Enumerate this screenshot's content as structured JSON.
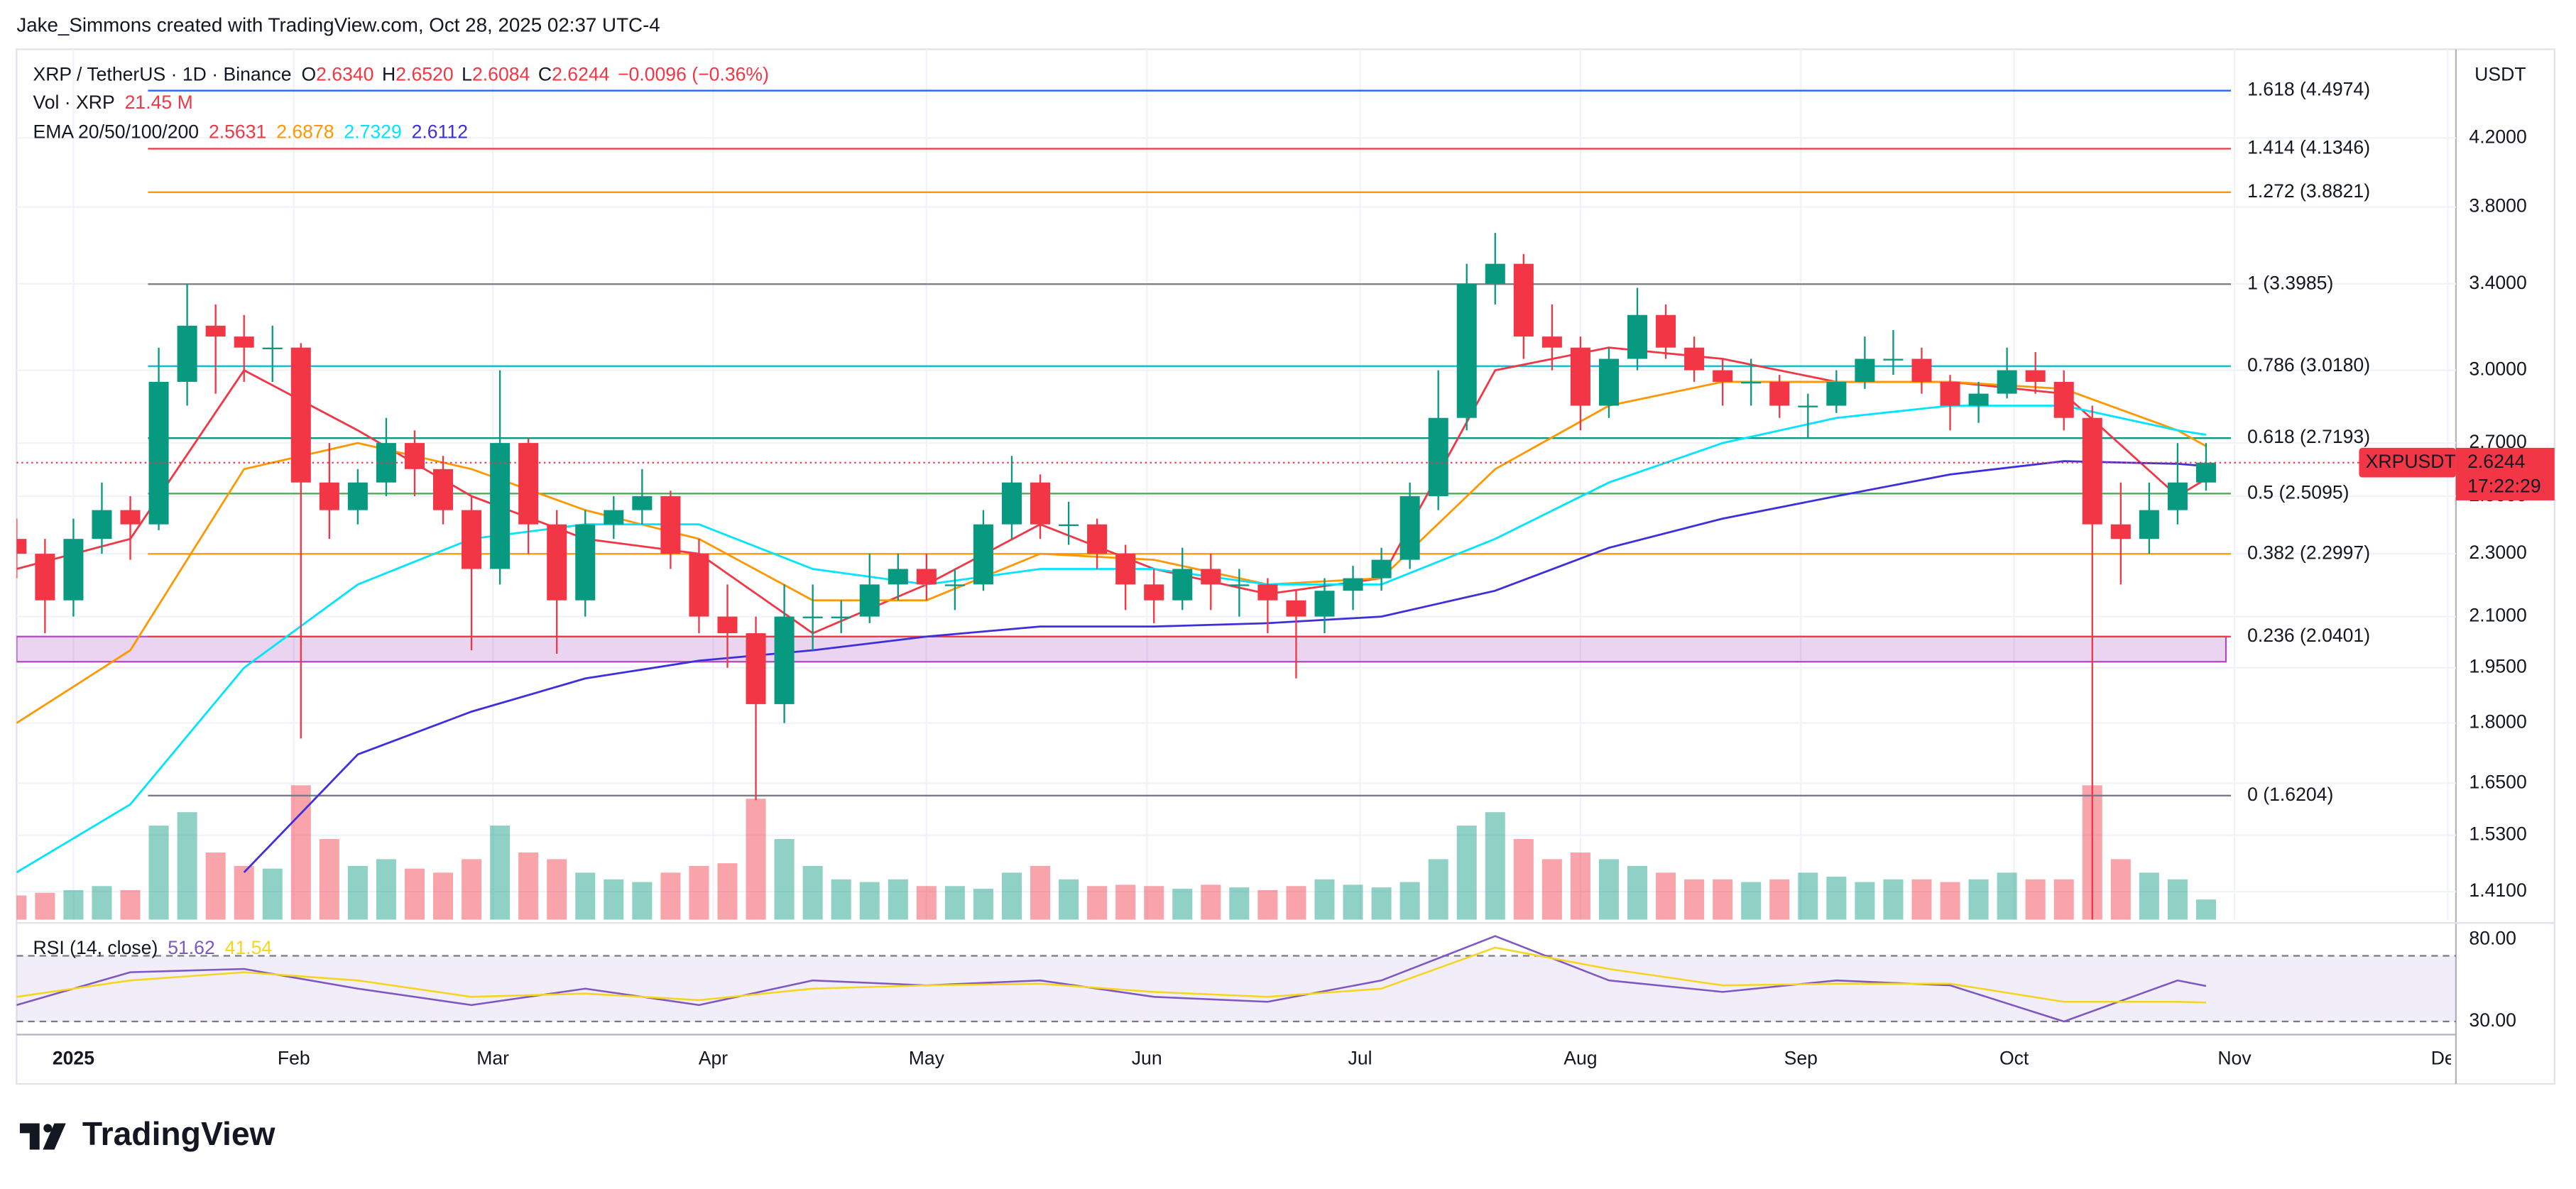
{
  "header": {
    "attribution": "Jake_Simmons created with TradingView.com, Oct 28, 2025 02:37 UTC-4",
    "logo": "TradingView"
  },
  "chart_data": {
    "type": "candlestick",
    "symbol": "XRP / TetherUS · 1D · Binance",
    "ohlc_legend": [
      {
        "label": "O",
        "value": "2.6340"
      },
      {
        "label": "H",
        "value": "2.6520"
      },
      {
        "label": "L",
        "value": "2.6084"
      },
      {
        "label": "C",
        "value": "2.6244"
      }
    ],
    "change": "−0.0096 (−0.36%)",
    "volume_label": "Vol · XRP",
    "volume_last": "21.45 M",
    "ema_label": "EMA 20/50/100/200",
    "currency": "USDT",
    "log_scale": true,
    "grid": true,
    "up_color": "#089981",
    "down_color": "#f23645",
    "x": [
      -8,
      -4,
      0,
      4,
      8,
      12,
      16,
      20,
      24,
      28,
      32,
      36,
      40,
      44,
      48,
      52,
      56,
      60,
      64,
      68,
      72,
      76,
      80,
      84,
      88,
      92,
      96,
      100,
      104,
      108,
      112,
      116,
      120,
      124,
      128,
      132,
      136,
      140,
      144,
      148,
      152,
      156,
      160,
      164,
      168,
      172,
      176,
      180,
      184,
      188,
      192,
      196,
      200,
      204,
      208,
      212,
      216,
      220,
      224,
      228,
      232,
      236,
      240,
      244,
      248,
      252,
      256,
      260,
      264,
      268,
      272,
      276,
      280,
      284,
      288,
      292,
      296,
      300
    ],
    "ohlc": [
      [
        2.35,
        2.42,
        2.22,
        2.3
      ],
      [
        2.3,
        2.35,
        2.05,
        2.15
      ],
      [
        2.15,
        2.42,
        2.1,
        2.35
      ],
      [
        2.35,
        2.55,
        2.3,
        2.45
      ],
      [
        2.45,
        2.5,
        2.28,
        2.4
      ],
      [
        2.4,
        3.1,
        2.38,
        2.95
      ],
      [
        2.95,
        3.4,
        2.85,
        3.2
      ],
      [
        3.2,
        3.3,
        2.9,
        3.15
      ],
      [
        3.15,
        3.25,
        2.95,
        3.1
      ],
      [
        3.1,
        3.2,
        2.95,
        3.1
      ],
      [
        3.1,
        3.12,
        1.76,
        2.55
      ],
      [
        2.55,
        2.7,
        2.35,
        2.45
      ],
      [
        2.45,
        2.6,
        2.4,
        2.55
      ],
      [
        2.55,
        2.8,
        2.5,
        2.7
      ],
      [
        2.7,
        2.75,
        2.5,
        2.6
      ],
      [
        2.6,
        2.65,
        2.4,
        2.45
      ],
      [
        2.45,
        2.5,
        2.0,
        2.25
      ],
      [
        2.25,
        3.0,
        2.2,
        2.7
      ],
      [
        2.7,
        2.72,
        2.3,
        2.4
      ],
      [
        2.4,
        2.45,
        1.99,
        2.15
      ],
      [
        2.15,
        2.45,
        2.1,
        2.4
      ],
      [
        2.4,
        2.5,
        2.35,
        2.45
      ],
      [
        2.45,
        2.6,
        2.4,
        2.5
      ],
      [
        2.5,
        2.52,
        2.25,
        2.3
      ],
      [
        2.3,
        2.35,
        2.05,
        2.1
      ],
      [
        2.1,
        2.2,
        1.95,
        2.05
      ],
      [
        2.05,
        2.1,
        1.61,
        1.85
      ],
      [
        1.85,
        2.2,
        1.8,
        2.1
      ],
      [
        2.1,
        2.2,
        2.0,
        2.1
      ],
      [
        2.1,
        2.15,
        2.05,
        2.1
      ],
      [
        2.1,
        2.3,
        2.08,
        2.2
      ],
      [
        2.2,
        2.3,
        2.15,
        2.25
      ],
      [
        2.25,
        2.3,
        2.15,
        2.2
      ],
      [
        2.2,
        2.25,
        2.12,
        2.2
      ],
      [
        2.2,
        2.45,
        2.18,
        2.4
      ],
      [
        2.4,
        2.65,
        2.35,
        2.55
      ],
      [
        2.55,
        2.58,
        2.35,
        2.4
      ],
      [
        2.4,
        2.48,
        2.33,
        2.4
      ],
      [
        2.4,
        2.42,
        2.25,
        2.3
      ],
      [
        2.3,
        2.33,
        2.12,
        2.2
      ],
      [
        2.2,
        2.25,
        2.08,
        2.15
      ],
      [
        2.15,
        2.32,
        2.12,
        2.25
      ],
      [
        2.25,
        2.3,
        2.12,
        2.2
      ],
      [
        2.2,
        2.25,
        2.1,
        2.2
      ],
      [
        2.2,
        2.22,
        2.05,
        2.15
      ],
      [
        2.15,
        2.18,
        1.92,
        2.1
      ],
      [
        2.1,
        2.22,
        2.05,
        2.18
      ],
      [
        2.18,
        2.26,
        2.12,
        2.22
      ],
      [
        2.22,
        2.32,
        2.18,
        2.28
      ],
      [
        2.28,
        2.55,
        2.25,
        2.5
      ],
      [
        2.5,
        3.0,
        2.45,
        2.8
      ],
      [
        2.8,
        3.5,
        2.75,
        3.4
      ],
      [
        3.4,
        3.66,
        3.3,
        3.5
      ],
      [
        3.5,
        3.55,
        3.05,
        3.15
      ],
      [
        3.15,
        3.3,
        3.0,
        3.1
      ],
      [
        3.1,
        3.15,
        2.75,
        2.85
      ],
      [
        2.85,
        3.1,
        2.8,
        3.05
      ],
      [
        3.05,
        3.38,
        3.0,
        3.25
      ],
      [
        3.25,
        3.3,
        3.05,
        3.1
      ],
      [
        3.1,
        3.15,
        2.95,
        3.0
      ],
      [
        3.0,
        3.05,
        2.85,
        2.95
      ],
      [
        2.95,
        3.05,
        2.85,
        2.95
      ],
      [
        2.95,
        2.98,
        2.8,
        2.85
      ],
      [
        2.85,
        2.9,
        2.72,
        2.85
      ],
      [
        2.85,
        3.0,
        2.82,
        2.95
      ],
      [
        2.95,
        3.15,
        2.92,
        3.05
      ],
      [
        3.05,
        3.18,
        2.98,
        3.05
      ],
      [
        3.05,
        3.1,
        2.9,
        2.95
      ],
      [
        2.95,
        2.98,
        2.75,
        2.85
      ],
      [
        2.85,
        2.95,
        2.78,
        2.9
      ],
      [
        2.9,
        3.1,
        2.88,
        3.0
      ],
      [
        3.0,
        3.08,
        2.9,
        2.95
      ],
      [
        2.95,
        3.0,
        2.75,
        2.8
      ],
      [
        2.8,
        2.85,
        1.35,
        2.4
      ],
      [
        2.4,
        2.55,
        2.2,
        2.35
      ],
      [
        2.35,
        2.55,
        2.3,
        2.45
      ],
      [
        2.45,
        2.7,
        2.4,
        2.55
      ],
      [
        2.55,
        2.7,
        2.52,
        2.6244
      ]
    ],
    "volume": [
      180,
      200,
      220,
      250,
      220,
      700,
      800,
      500,
      400,
      380,
      1000,
      600,
      400,
      450,
      380,
      350,
      450,
      700,
      500,
      450,
      350,
      300,
      280,
      350,
      400,
      420,
      900,
      600,
      400,
      300,
      280,
      300,
      250,
      250,
      230,
      350,
      400,
      300,
      250,
      260,
      250,
      230,
      260,
      240,
      220,
      250,
      300,
      260,
      240,
      280,
      450,
      700,
      800,
      600,
      450,
      500,
      450,
      400,
      350,
      300,
      300,
      280,
      300,
      350,
      320,
      280,
      300,
      300,
      280,
      300,
      350,
      300,
      300,
      1000,
      450,
      350,
      300,
      150
    ],
    "volume_ylim": [
      0,
      1100
    ],
    "xlim": [
      -8,
      334
    ],
    "xticks": [
      {
        "value": 0,
        "label": "2025"
      },
      {
        "value": 31,
        "label": "Feb"
      },
      {
        "value": 59,
        "label": "Mar"
      },
      {
        "value": 90,
        "label": "Apr"
      },
      {
        "value": 120,
        "label": "May"
      },
      {
        "value": 151,
        "label": "Jun"
      },
      {
        "value": 181,
        "label": "Jul"
      },
      {
        "value": 212,
        "label": "Aug"
      },
      {
        "value": 243,
        "label": "Sep"
      },
      {
        "value": 273,
        "label": "Oct"
      },
      {
        "value": 304,
        "label": "Nov"
      },
      {
        "value": 334,
        "label": "Dec"
      }
    ],
    "ylim": [
      1.354,
      4.775
    ],
    "yticks": [
      {
        "value": 4.2,
        "label": "4.2000"
      },
      {
        "value": 3.8,
        "label": "3.8000"
      },
      {
        "value": 3.4,
        "label": "3.4000"
      },
      {
        "value": 3.0,
        "label": "3.0000"
      },
      {
        "value": 2.7,
        "label": "2.7000"
      },
      {
        "value": 2.5,
        "label": "2.5000"
      },
      {
        "value": 2.3,
        "label": "2.3000"
      },
      {
        "value": 2.1,
        "label": "2.1000"
      },
      {
        "value": 1.95,
        "label": "1.9500"
      },
      {
        "value": 1.8,
        "label": "1.8000"
      },
      {
        "value": 1.65,
        "label": "1.6500"
      },
      {
        "value": 1.53,
        "label": "1.5300"
      },
      {
        "value": 1.41,
        "label": "1.4100"
      }
    ],
    "ema": [
      {
        "color": "#f23645",
        "x": [
          -8,
          8,
          24,
          40,
          56,
          72,
          88,
          104,
          120,
          136,
          152,
          168,
          184,
          200,
          216,
          232,
          248,
          264,
          280,
          296,
          300
        ],
        "values": [
          2.25,
          2.35,
          3.0,
          2.75,
          2.5,
          2.35,
          2.3,
          2.05,
          2.2,
          2.4,
          2.25,
          2.17,
          2.22,
          3.0,
          3.1,
          3.05,
          2.95,
          2.95,
          2.9,
          2.5,
          2.5631
        ]
      },
      {
        "color": "#ff9800",
        "x": [
          -8,
          8,
          24,
          40,
          56,
          72,
          88,
          104,
          120,
          136,
          152,
          168,
          184,
          200,
          216,
          232,
          248,
          264,
          280,
          296,
          300
        ],
        "values": [
          1.8,
          2.0,
          2.6,
          2.7,
          2.6,
          2.45,
          2.35,
          2.15,
          2.15,
          2.3,
          2.28,
          2.2,
          2.22,
          2.6,
          2.85,
          2.95,
          2.95,
          2.95,
          2.92,
          2.75,
          2.6878
        ]
      },
      {
        "color": "#00e5ff",
        "x": [
          -8,
          8,
          24,
          40,
          56,
          72,
          88,
          104,
          120,
          136,
          152,
          168,
          184,
          200,
          216,
          232,
          248,
          264,
          280,
          296,
          300
        ],
        "values": [
          1.45,
          1.6,
          1.95,
          2.2,
          2.35,
          2.4,
          2.4,
          2.25,
          2.2,
          2.25,
          2.25,
          2.2,
          2.2,
          2.35,
          2.55,
          2.7,
          2.8,
          2.85,
          2.85,
          2.75,
          2.7329
        ]
      },
      {
        "color": "#3d2fdd",
        "x": [
          -8,
          8,
          24,
          40,
          56,
          72,
          88,
          104,
          120,
          136,
          152,
          168,
          184,
          200,
          216,
          232,
          248,
          264,
          280,
          296,
          300
        ],
        "values": [
          null,
          null,
          1.45,
          1.72,
          1.83,
          1.92,
          1.97,
          2.0,
          2.04,
          2.07,
          2.07,
          2.08,
          2.1,
          2.18,
          2.32,
          2.42,
          2.5,
          2.58,
          2.63,
          2.62,
          2.6112
        ]
      }
    ],
    "fib": [
      {
        "label": "1.618 (4.4974)",
        "value": 4.4974,
        "color": "#2962ff"
      },
      {
        "label": "1.414 (4.1346)",
        "value": 4.1346,
        "color": "#f23645"
      },
      {
        "label": "1.272 (3.8821)",
        "value": 3.8821,
        "color": "#ff9800"
      },
      {
        "label": "1 (3.3985)",
        "value": 3.3985,
        "color": "#787b86"
      },
      {
        "label": "0.786 (3.0180)",
        "value": 3.018,
        "color": "#00bcd4"
      },
      {
        "label": "0.618 (2.7193)",
        "value": 2.7193,
        "color": "#089981"
      },
      {
        "label": "0.5 (2.5095)",
        "value": 2.5095,
        "color": "#4caf50"
      },
      {
        "label": "0.382 (2.2997)",
        "value": 2.2997,
        "color": "#ff9800"
      },
      {
        "label": "0.236 (2.0401)",
        "value": 2.0401,
        "color": "#f23645"
      },
      {
        "label": "0 (1.6204)",
        "value": 1.6204,
        "color": "#787b86"
      }
    ],
    "zone": {
      "low": 1.967,
      "high": 2.0401,
      "color": "#9c27b0"
    },
    "last_price": {
      "symbol": "XRPUSDT",
      "value": 2.6244,
      "countdown": "17:22:29",
      "color": "#f23645"
    },
    "rsi": {
      "label": "RSI (14, close)",
      "ylim": [
        24,
        84
      ],
      "yticks": [
        {
          "value": 80,
          "label": "80.00"
        },
        {
          "value": 30,
          "label": "30.00"
        }
      ],
      "band": [
        30,
        70
      ],
      "band_color": "#7e57c2",
      "series": [
        {
          "color": "#7e57c2",
          "x": [
            -8,
            8,
            24,
            40,
            56,
            72,
            88,
            104,
            120,
            136,
            152,
            168,
            184,
            200,
            216,
            232,
            248,
            264,
            280,
            296,
            300
          ],
          "values": [
            40,
            60,
            62,
            50,
            40,
            50,
            40,
            55,
            52,
            55,
            45,
            42,
            55,
            82,
            55,
            48,
            55,
            52,
            30,
            55,
            51.62
          ]
        },
        {
          "color": "#f7d51e",
          "x": [
            -8,
            8,
            24,
            40,
            56,
            72,
            88,
            104,
            120,
            136,
            152,
            168,
            184,
            200,
            216,
            232,
            248,
            264,
            280,
            296,
            300
          ],
          "values": [
            45,
            55,
            60,
            55,
            45,
            47,
            43,
            50,
            52,
            53,
            48,
            45,
            50,
            75,
            62,
            52,
            53,
            53,
            42,
            42,
            41.54
          ]
        }
      ]
    }
  }
}
